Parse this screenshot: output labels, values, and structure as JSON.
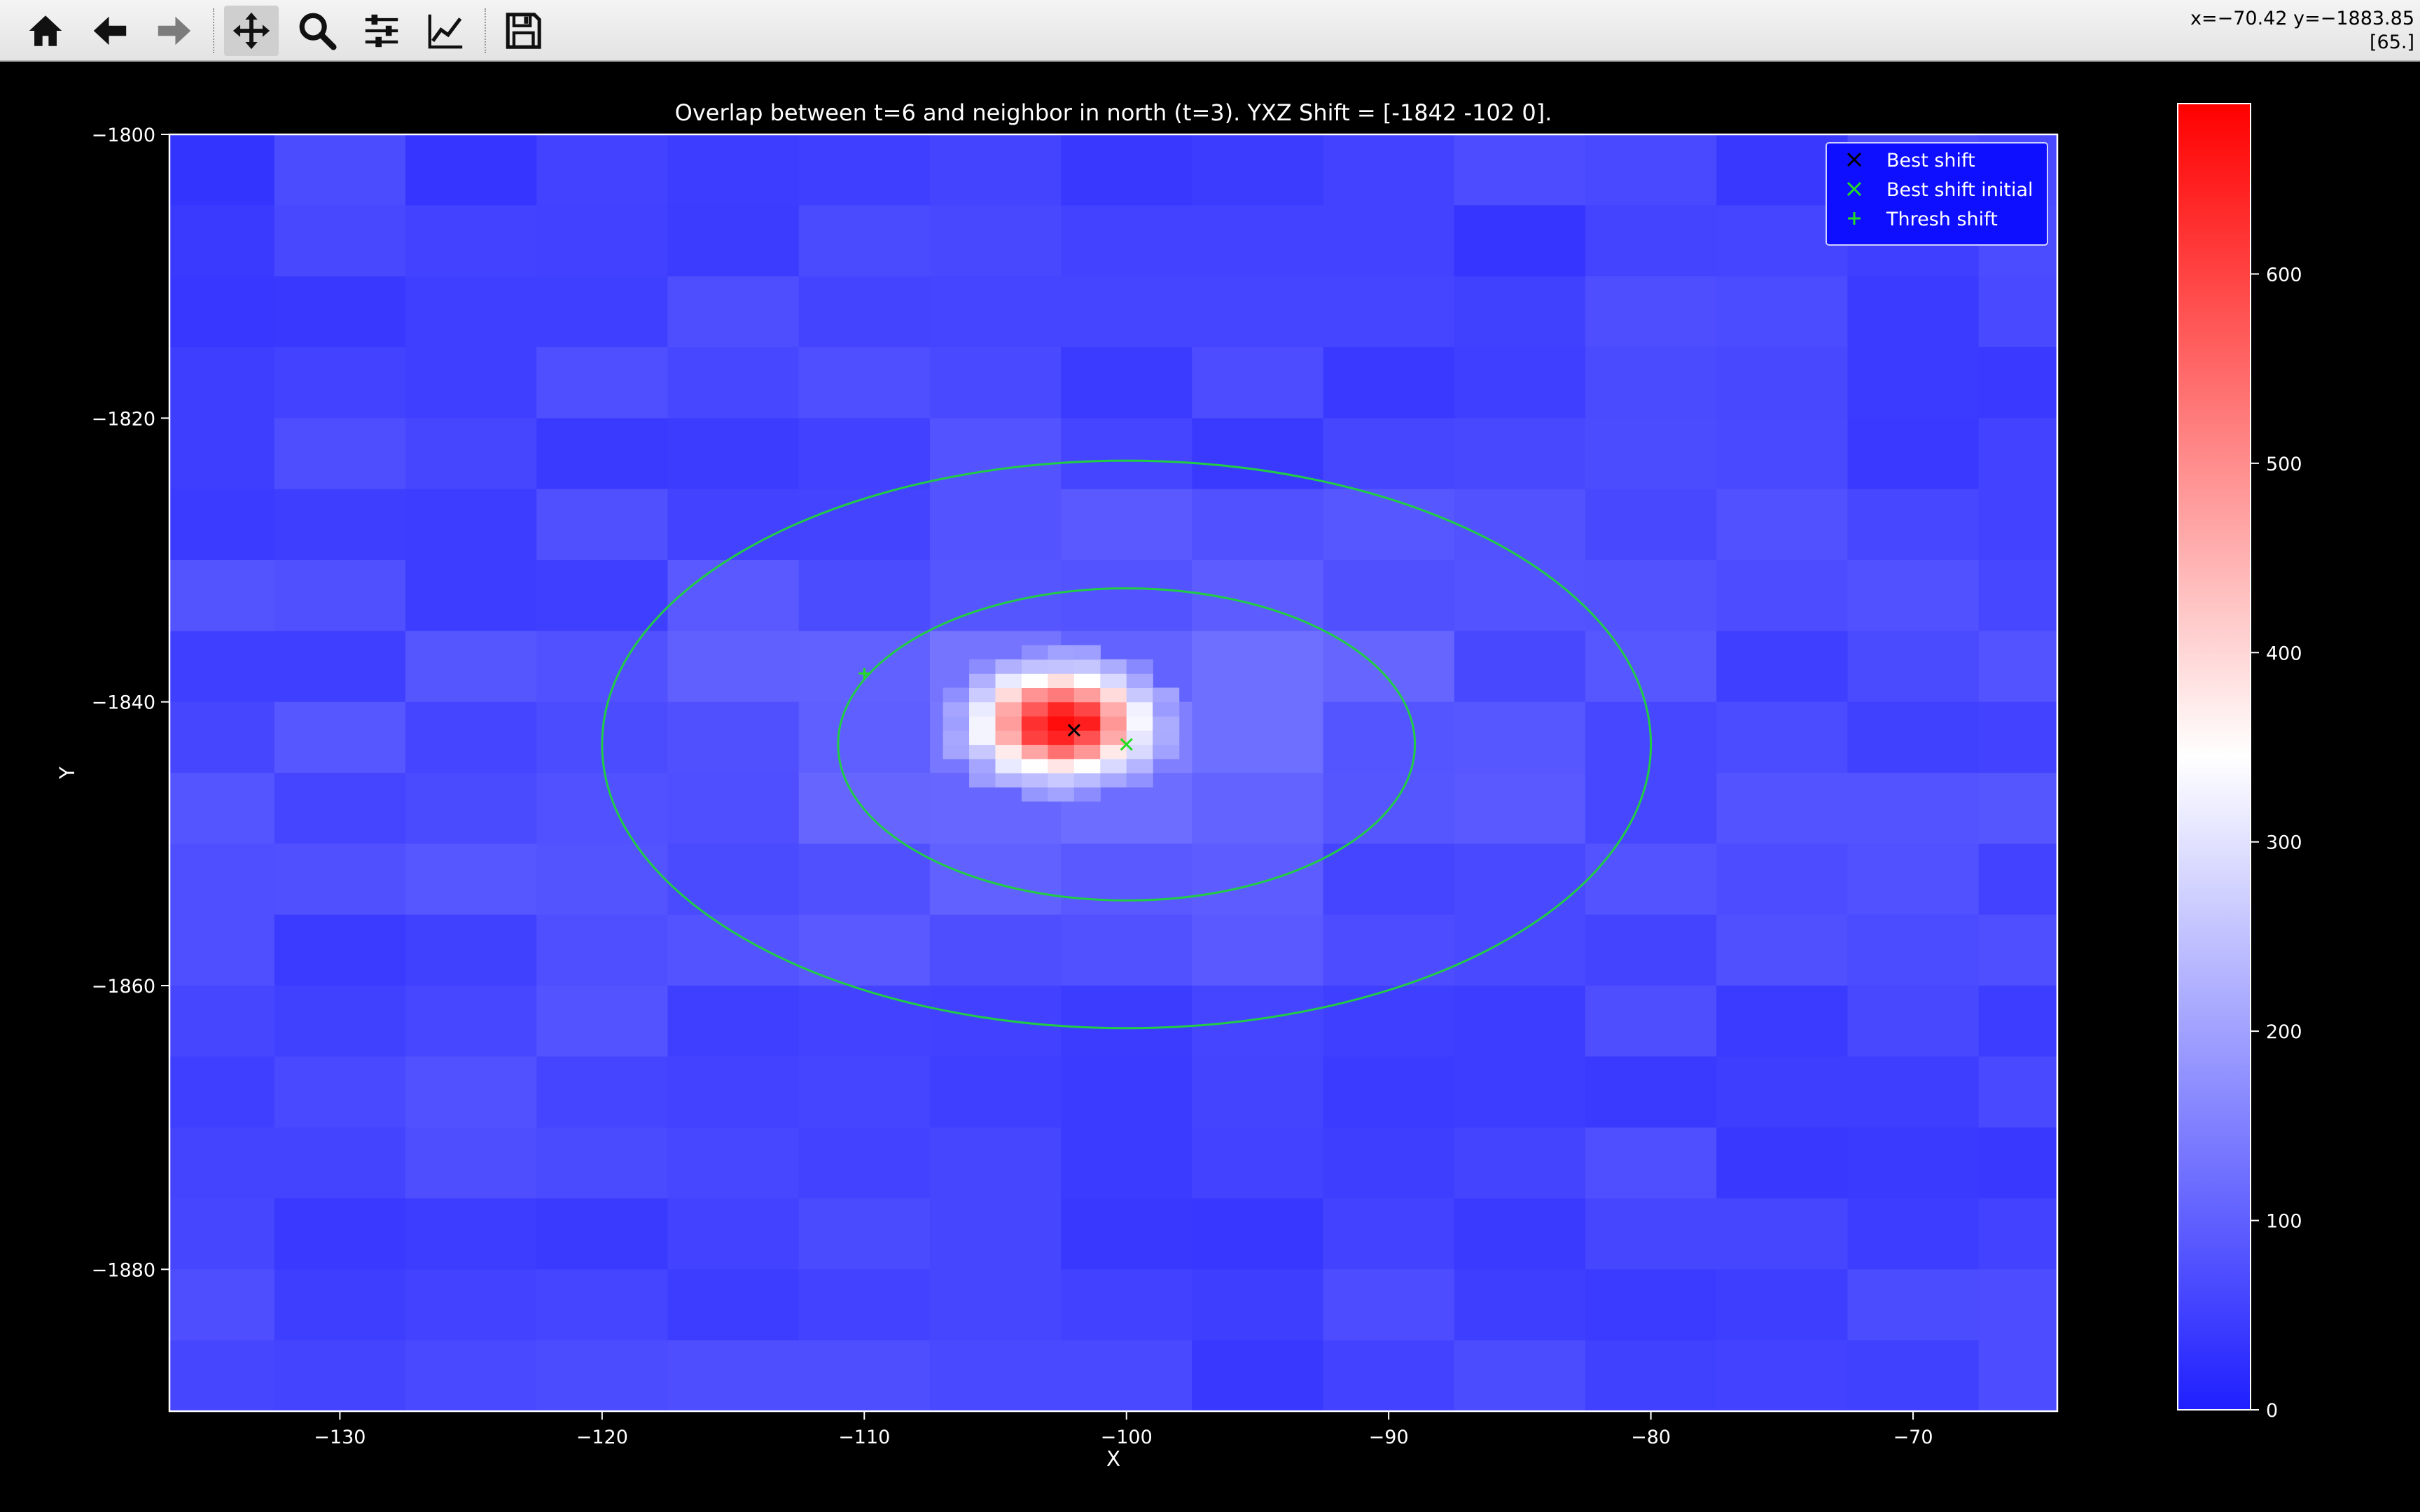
{
  "toolbar": {
    "buttons": [
      {
        "name": "home-icon",
        "label": "Home"
      },
      {
        "name": "back-icon",
        "label": "Back"
      },
      {
        "name": "forward-icon",
        "label": "Forward"
      },
      {
        "name": "pan-icon",
        "label": "Pan"
      },
      {
        "name": "zoom-icon",
        "label": "Zoom"
      },
      {
        "name": "subplots-icon",
        "label": "Configure subplots"
      },
      {
        "name": "axes-icon",
        "label": "Edit axes"
      },
      {
        "name": "save-icon",
        "label": "Save"
      }
    ],
    "active_tool": "pan",
    "coord_readout": "x=−70.42 y=−1883.85",
    "value_readout": "[65.]"
  },
  "chart_data": {
    "type": "heatmap",
    "title": "Overlap between t=6 and neighbor in north (t=3). YXZ Shift = [-1842  -102     0].",
    "xlabel": "X",
    "ylabel": "Y",
    "xlim": [
      -136.5,
      -64.5
    ],
    "ylim": [
      -1890,
      -1800
    ],
    "xticks": [
      -130,
      -120,
      -110,
      -100,
      -90,
      -80,
      -70
    ],
    "yticks": [
      -1800,
      -1820,
      -1840,
      -1860,
      -1880
    ],
    "xtick_labels": [
      "−130",
      "−120",
      "−110",
      "−100",
      "−90",
      "−80",
      "−70"
    ],
    "ytick_labels": [
      "−1800",
      "−1820",
      "−1840",
      "−1860",
      "−1880"
    ],
    "grid": false,
    "colormap": "bwr",
    "colorbar": {
      "min": 0,
      "max": 690,
      "ticks": [
        0,
        100,
        200,
        300,
        400,
        500,
        600
      ],
      "tick_labels": [
        "0",
        "100",
        "200",
        "300",
        "400",
        "500",
        "600"
      ]
    },
    "peak_value": 690,
    "background_value": 85,
    "markers": [
      {
        "label": "Best shift",
        "x": -102,
        "y": -1842,
        "symbol": "x",
        "color": "#000000"
      },
      {
        "label": "Best shift initial",
        "x": -100,
        "y": -1843,
        "symbol": "x",
        "color": "#22dd22"
      },
      {
        "label": "Thresh shift",
        "x": -110,
        "y": -1838,
        "symbol": "+",
        "color": "#22dd22"
      }
    ],
    "ellipses": [
      {
        "cx": -100,
        "cy": -1843,
        "rx": 11,
        "ry": 11,
        "color": "#22cc44"
      },
      {
        "cx": -100,
        "cy": -1843,
        "rx": 20,
        "ry": 20,
        "color": "#22cc44"
      }
    ],
    "legend": {
      "placement": "top-right",
      "entries": [
        "Best shift",
        "Best shift initial",
        "Thresh shift"
      ]
    }
  }
}
